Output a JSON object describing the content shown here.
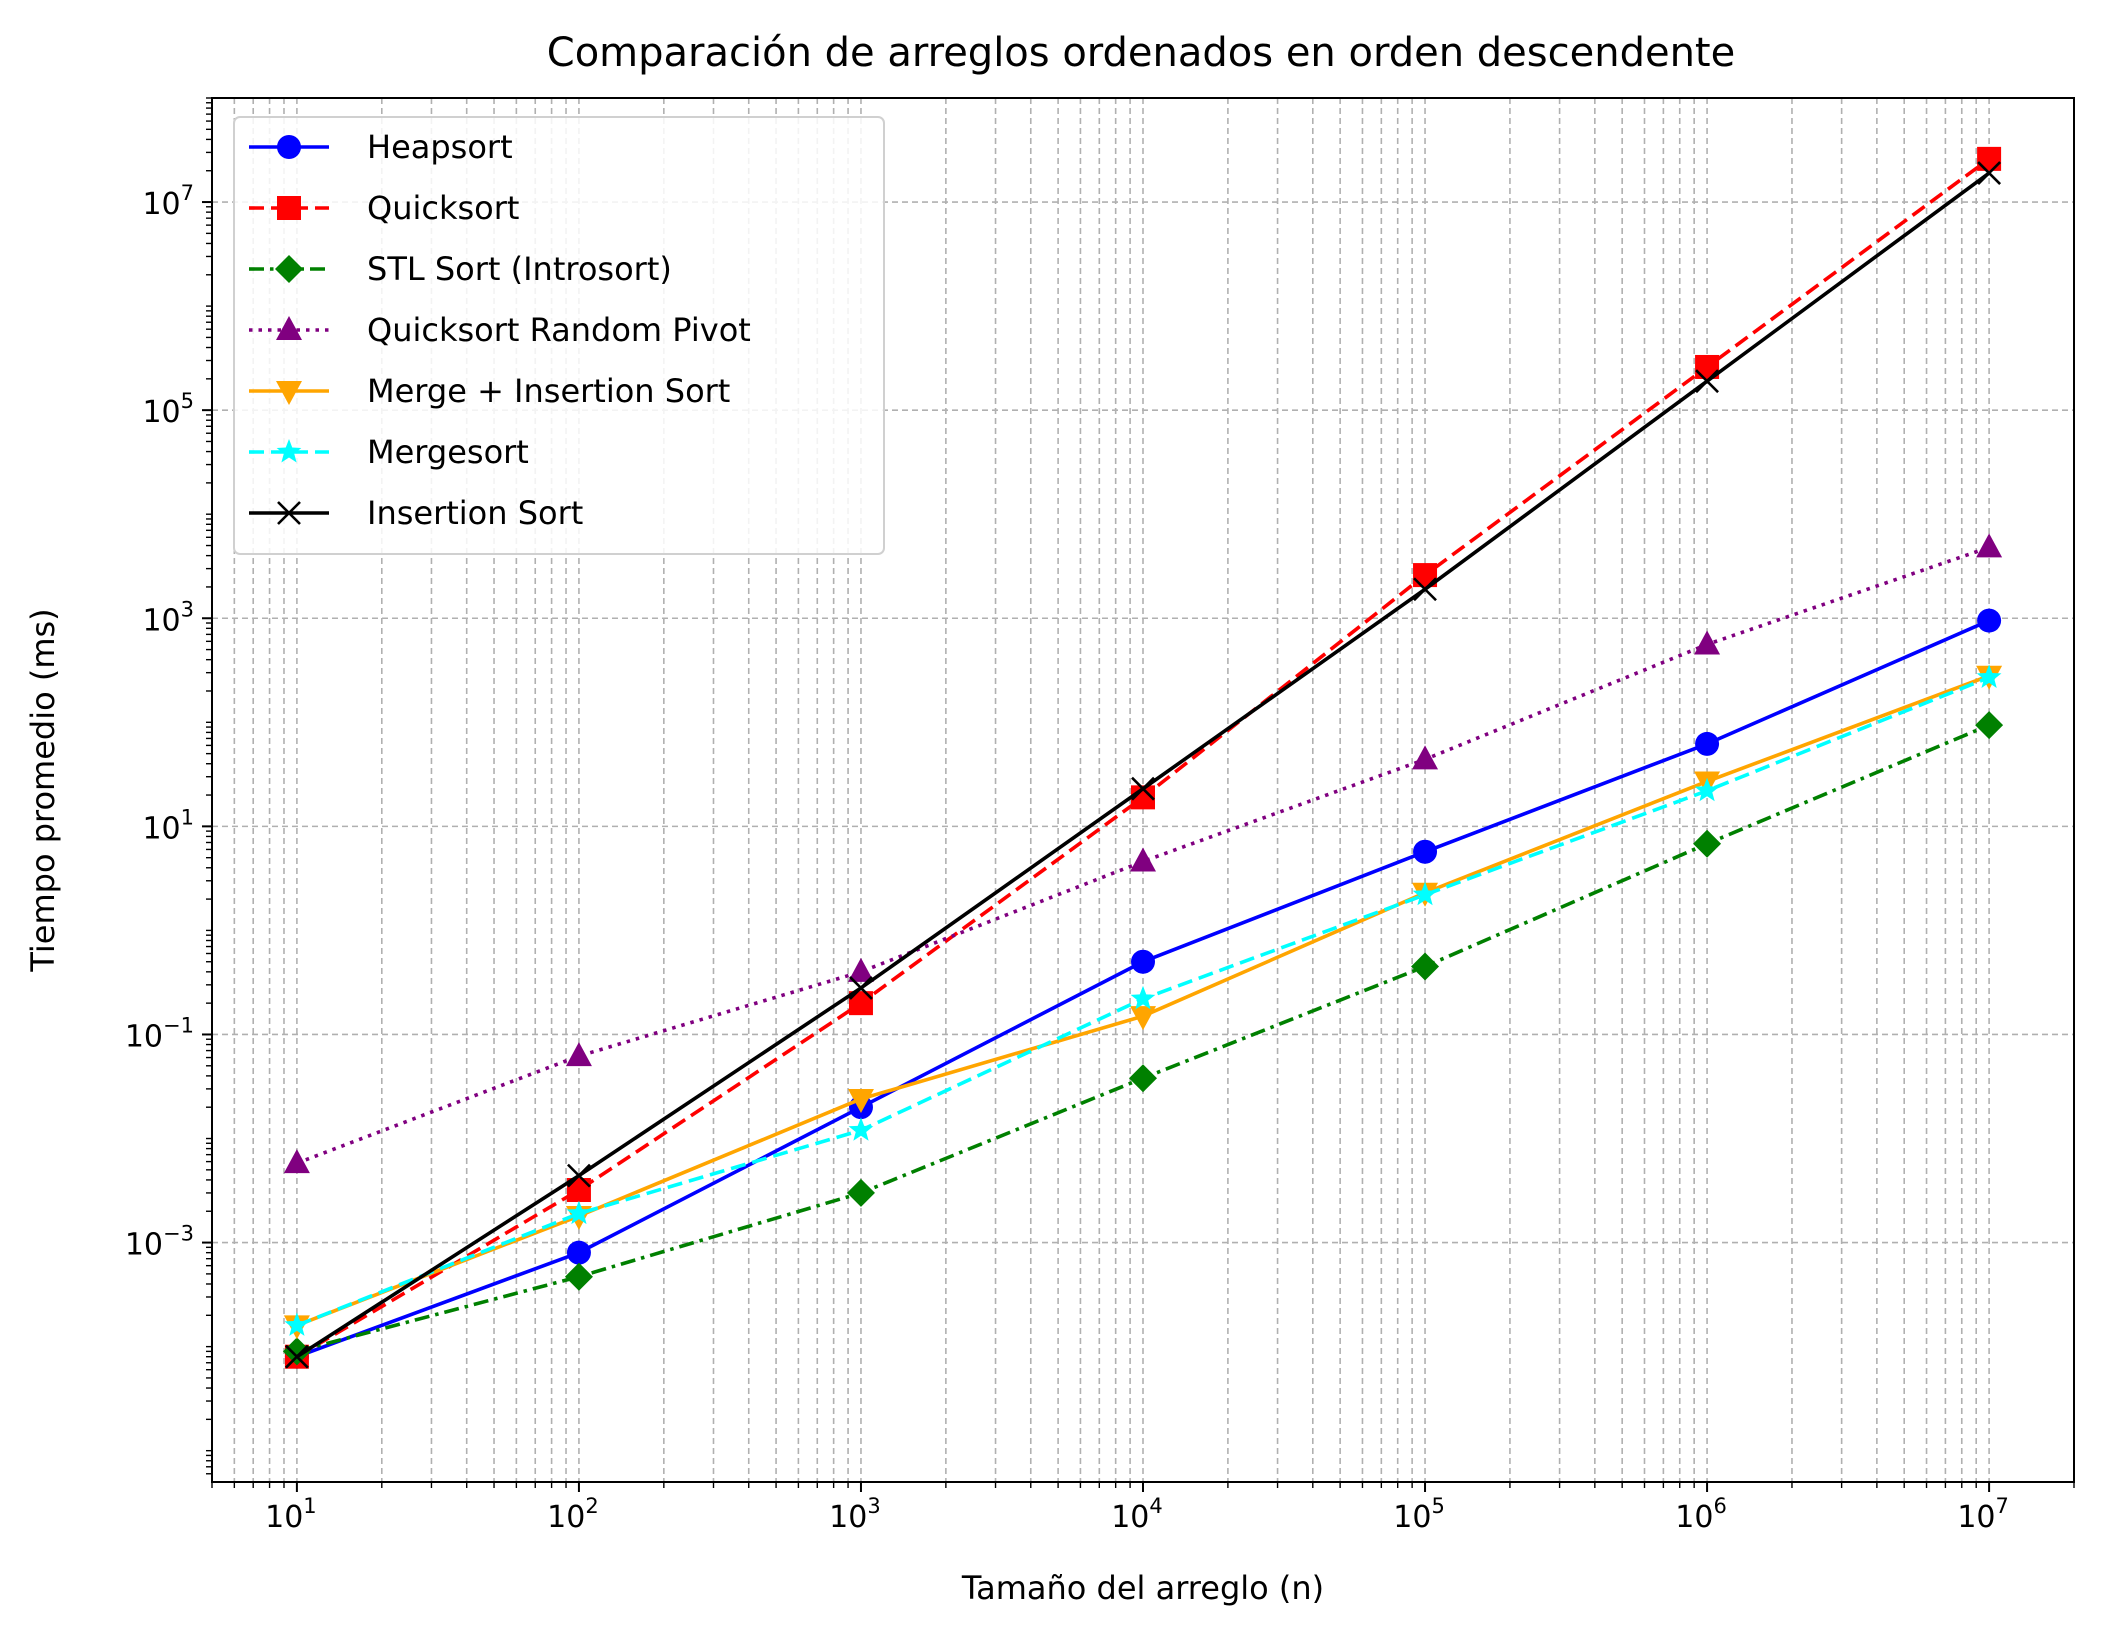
{
  "chart_data": {
    "type": "line",
    "title": "Comparación de arreglos ordenados en orden descendente",
    "xlabel": "Tamaño del arreglo (n)",
    "ylabel": "Tiempo promedio (ms)",
    "xscale": "log",
    "yscale": "log",
    "xlim": [
      5,
      20000000
    ],
    "ylim": [
      5e-06,
      100000000
    ],
    "grid": "both",
    "legend_position": "top-left",
    "x": [
      10,
      100,
      1000,
      10000,
      100000,
      1000000,
      10000000
    ],
    "x_ticks": [
      {
        "base": "10",
        "exp": "1"
      },
      {
        "base": "10",
        "exp": "2"
      },
      {
        "base": "10",
        "exp": "3"
      },
      {
        "base": "10",
        "exp": "4"
      },
      {
        "base": "10",
        "exp": "5"
      },
      {
        "base": "10",
        "exp": "6"
      },
      {
        "base": "10",
        "exp": "7"
      }
    ],
    "y_ticks": [
      {
        "value": 0.001,
        "base": "10",
        "exp": "−3"
      },
      {
        "value": 0.1,
        "base": "10",
        "exp": "−1"
      },
      {
        "value": 10,
        "base": "10",
        "exp": "1"
      },
      {
        "value": 1000,
        "base": "10",
        "exp": "3"
      },
      {
        "value": 100000,
        "base": "10",
        "exp": "5"
      },
      {
        "value": 10000000,
        "base": "10",
        "exp": "7"
      }
    ],
    "series": [
      {
        "name": "Heapsort",
        "color": "#0000ff",
        "dash": "solid",
        "marker": "circle",
        "values": [
          8e-05,
          0.0008,
          0.02,
          0.5,
          5.7,
          62,
          950
        ]
      },
      {
        "name": "Quicksort",
        "color": "#ff0000",
        "dash": "dashed",
        "marker": "square",
        "values": [
          8e-05,
          0.0032,
          0.2,
          19,
          2600,
          260000,
          26000000
        ]
      },
      {
        "name": "STL Sort (Introsort)",
        "color": "#008000",
        "dash": "dashdot",
        "marker": "diamond",
        "values": [
          9e-05,
          0.00047,
          0.003,
          0.038,
          0.45,
          6.8,
          94
        ]
      },
      {
        "name": "Quicksort Random Pivot",
        "color": "#800080",
        "dash": "dotted",
        "marker": "triangle-up",
        "values": [
          0.0058,
          0.062,
          0.4,
          4.6,
          44,
          560,
          4800
        ]
      },
      {
        "name": "Merge + Insertion Sort",
        "color": "#ffa500",
        "dash": "solid",
        "marker": "triangle-down",
        "values": [
          0.00016,
          0.0018,
          0.024,
          0.15,
          2.3,
          27,
          280
        ]
      },
      {
        "name": "Mergesort",
        "color": "#00ffff",
        "dash": "dashed",
        "marker": "star",
        "values": [
          0.00016,
          0.0019,
          0.012,
          0.22,
          2.2,
          22,
          270
        ]
      },
      {
        "name": "Insertion Sort",
        "color": "#000000",
        "dash": "solid",
        "marker": "x",
        "values": [
          8e-05,
          0.0044,
          0.28,
          23,
          1900,
          190000,
          19000000
        ]
      }
    ]
  }
}
